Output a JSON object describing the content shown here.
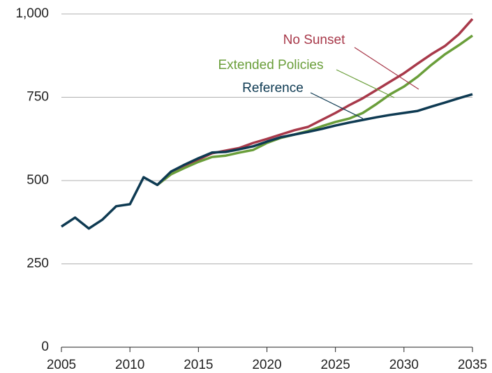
{
  "chart_data": {
    "type": "line",
    "x": [
      2005,
      2006,
      2007,
      2008,
      2009,
      2010,
      2011,
      2012,
      2013,
      2014,
      2015,
      2016,
      2017,
      2018,
      2019,
      2020,
      2021,
      2022,
      2023,
      2024,
      2025,
      2026,
      2027,
      2028,
      2029,
      2030,
      2031,
      2032,
      2033,
      2034,
      2035
    ],
    "series": [
      {
        "name": "No Sunset",
        "color": "#a8394a",
        "values": [
          null,
          null,
          null,
          null,
          null,
          null,
          null,
          487,
          519,
          540,
          563,
          582,
          590,
          598,
          613,
          625,
          638,
          651,
          661,
          682,
          703,
          726,
          747,
          772,
          797,
          822,
          851,
          879,
          904,
          939,
          985
        ]
      },
      {
        "name": "Extended Policies",
        "color": "#6a9e3a",
        "values": [
          null,
          null,
          null,
          null,
          null,
          null,
          null,
          487,
          519,
          538,
          556,
          571,
          575,
          584,
          592,
          613,
          628,
          638,
          649,
          663,
          676,
          686,
          703,
          730,
          759,
          782,
          812,
          847,
          879,
          906,
          935
        ]
      },
      {
        "name": "Reference",
        "color": "#0e3a52",
        "values": [
          362,
          389,
          356,
          383,
          423,
          429,
          510,
          487,
          527,
          548,
          567,
          584,
          586,
          594,
          603,
          617,
          630,
          638,
          646,
          655,
          665,
          674,
          682,
          690,
          697,
          703,
          709,
          722,
          734,
          747,
          759
        ]
      }
    ],
    "xlim": [
      2005,
      2035
    ],
    "xticks": [
      2005,
      2010,
      2015,
      2020,
      2025,
      2030,
      2035
    ],
    "ylim": [
      0,
      1000
    ],
    "yticks": [
      0,
      250,
      500,
      750,
      {
        "value": 1000,
        "label": "1,000"
      }
    ],
    "grid": true
  }
}
